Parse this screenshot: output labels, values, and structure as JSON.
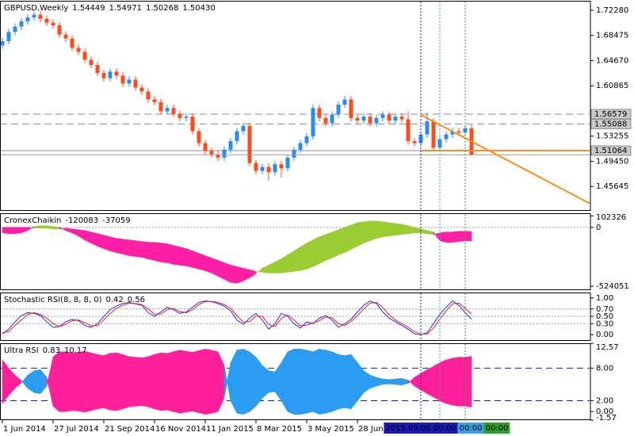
{
  "chart_data": [
    {
      "type": "candlestick",
      "title": "GBPUSD,Weekly",
      "header_values": [
        "1.54449",
        "1.54971",
        "1.50268",
        "1.50430"
      ],
      "xlim": [
        -0.375,
        92.75
      ],
      "xticks": [
        {
          "value": 0,
          "label": "1 Jun 2014"
        },
        {
          "value": 8,
          "label": "27 Jul 2014"
        },
        {
          "value": 16,
          "label": "21 Sep 2014"
        },
        {
          "value": 24,
          "label": "16 Nov 2014"
        },
        {
          "value": 32,
          "label": "11 Jan 2015"
        },
        {
          "value": 40,
          "label": "8 Mar 2015"
        },
        {
          "value": 48,
          "label": "3 May 2015"
        },
        {
          "value": 56,
          "label": "28 Jun 2015"
        }
      ],
      "ylim": [
        1.4196,
        1.7371
      ],
      "yticks": [
        {
          "value": 1.7228,
          "label": "1.72280"
        },
        1.68475,
        {
          "value": 1.6467,
          "label": "1.64670"
        },
        1.60865,
        1.53255,
        {
          "value": 1.4945,
          "label": "1.49450"
        },
        1.45645
      ],
      "up_color": "#2a8cf0",
      "down_color": "#ff4a1c",
      "open": [
        1.67,
        1.676,
        1.69,
        1.698,
        1.706,
        1.712,
        1.716,
        1.71,
        1.704,
        1.7,
        1.686,
        1.68,
        1.666,
        1.66,
        1.648,
        1.64,
        1.628,
        1.62,
        1.63,
        1.624,
        1.612,
        1.618,
        1.606,
        1.6,
        1.588,
        1.584,
        1.57,
        1.575,
        1.566,
        1.56,
        1.562,
        1.54,
        1.522,
        1.51,
        1.505,
        1.5,
        1.512,
        1.525,
        1.54,
        1.548,
        1.492,
        1.48,
        1.486,
        1.478,
        1.49,
        1.484,
        1.5,
        1.512,
        1.522,
        1.532,
        1.575,
        1.56,
        1.552,
        1.565,
        1.58,
        1.588,
        1.56,
        1.556,
        1.562,
        1.552,
        1.56,
        1.565,
        1.556,
        1.562,
        1.558,
        1.525,
        1.522,
        1.535,
        1.555,
        1.515,
        1.528,
        1.535,
        1.54,
        1.538,
        1.54449
      ],
      "high": [
        1.681,
        1.695,
        1.703,
        1.711,
        1.717,
        1.721,
        1.721,
        1.715,
        1.709,
        1.705,
        1.691,
        1.685,
        1.671,
        1.665,
        1.653,
        1.645,
        1.633,
        1.635,
        1.635,
        1.629,
        1.623,
        1.623,
        1.611,
        1.605,
        1.593,
        1.589,
        1.58,
        1.58,
        1.571,
        1.567,
        1.567,
        1.545,
        1.527,
        1.515,
        1.51,
        1.517,
        1.53,
        1.545,
        1.553,
        1.553,
        1.497,
        1.491,
        1.491,
        1.495,
        1.495,
        1.505,
        1.517,
        1.527,
        1.537,
        1.58,
        1.58,
        1.565,
        1.57,
        1.585,
        1.593,
        1.593,
        1.565,
        1.567,
        1.567,
        1.565,
        1.57,
        1.57,
        1.567,
        1.567,
        1.57,
        1.53,
        1.54,
        1.568,
        1.56,
        1.533,
        1.54,
        1.545,
        1.545,
        1.55,
        1.54971
      ],
      "low": [
        1.665,
        1.671,
        1.685,
        1.693,
        1.701,
        1.707,
        1.705,
        1.699,
        1.695,
        1.681,
        1.675,
        1.661,
        1.655,
        1.643,
        1.635,
        1.623,
        1.615,
        1.615,
        1.619,
        1.607,
        1.607,
        1.601,
        1.595,
        1.583,
        1.579,
        1.565,
        1.565,
        1.561,
        1.555,
        1.555,
        1.535,
        1.517,
        1.505,
        1.5,
        1.495,
        1.495,
        1.507,
        1.52,
        1.535,
        1.487,
        1.475,
        1.475,
        1.465,
        1.473,
        1.47,
        1.479,
        1.495,
        1.507,
        1.517,
        1.527,
        1.555,
        1.547,
        1.547,
        1.56,
        1.575,
        1.555,
        1.551,
        1.551,
        1.547,
        1.547,
        1.555,
        1.551,
        1.551,
        1.553,
        1.52,
        1.517,
        1.517,
        1.53,
        1.51,
        1.51,
        1.523,
        1.53,
        1.533,
        1.533,
        1.50268
      ],
      "close": [
        1.676,
        1.69,
        1.698,
        1.706,
        1.712,
        1.716,
        1.71,
        1.704,
        1.7,
        1.686,
        1.68,
        1.666,
        1.66,
        1.648,
        1.64,
        1.628,
        1.62,
        1.63,
        1.624,
        1.612,
        1.618,
        1.606,
        1.6,
        1.588,
        1.584,
        1.57,
        1.575,
        1.566,
        1.56,
        1.562,
        1.54,
        1.522,
        1.51,
        1.505,
        1.5,
        1.512,
        1.525,
        1.54,
        1.548,
        1.492,
        1.48,
        1.486,
        1.478,
        1.49,
        1.484,
        1.5,
        1.512,
        1.522,
        1.532,
        1.575,
        1.56,
        1.552,
        1.565,
        1.58,
        1.588,
        1.56,
        1.556,
        1.562,
        1.552,
        1.56,
        1.565,
        1.556,
        1.562,
        1.558,
        1.525,
        1.522,
        1.535,
        1.555,
        1.515,
        1.528,
        1.535,
        1.54,
        1.538,
        1.54449,
        1.5043
      ],
      "levels": [
        {
          "value": 1.56579,
          "style": "dashed"
        },
        {
          "value": 1.55088,
          "style": "dashed"
        },
        {
          "value": 1.51064,
          "style": "solid"
        }
      ],
      "support": {
        "value": 1.51064,
        "x": 66,
        "color": "#ff8c1a"
      },
      "trendline": {
        "x": [
          66,
          92.75
        ],
        "y": [
          1.5647,
          1.4303
        ],
        "color": "#ff8c1a"
      },
      "vlines": [
        {
          "x": 66,
          "color": "#1a1ab4",
          "label": "2015.09.06 00:00"
        },
        {
          "x": 69,
          "color": "#3aa0e8",
          "label": "00:00"
        },
        {
          "x": 73,
          "color": "#2ca02c",
          "label": "00:00"
        }
      ]
    },
    {
      "type": "band",
      "title": "CronexChaikin",
      "ylim": [
        -559000,
        125800
      ],
      "yticks": [
        102326,
        0,
        -524051
      ],
      "levels": [
        0
      ],
      "fill_colors": [
        "#9acd32",
        "#ff1fa6"
      ],
      "series": [
        {
          "values": [
            -49000,
            -56000,
            -56000,
            -49000,
            -28000,
            7000,
            14000,
            14000,
            7000,
            0,
            -28000,
            -49000,
            -77000,
            -112000,
            -140000,
            -168000,
            -189000,
            -210000,
            -224000,
            -238000,
            -252000,
            -259000,
            -266000,
            -280000,
            -294000,
            -308000,
            -315000,
            -329000,
            -336000,
            -343000,
            -357000,
            -371000,
            -385000,
            -406000,
            -434000,
            -462000,
            -490000,
            -497000,
            -476000,
            -448000,
            -413000,
            -364000,
            -336000,
            -308000,
            -280000,
            -245000,
            -210000,
            -175000,
            -140000,
            -112000,
            -84000,
            -63000,
            -42000,
            -21000,
            0,
            21000,
            42000,
            49000,
            56000,
            56000,
            49000,
            42000,
            35000,
            28000,
            14000,
            0,
            -14000,
            -28000,
            -42000,
            -119000,
            -133000,
            -133000,
            -126000,
            -119000,
            -120083
          ]
        },
        {
          "values": [
            0,
            0,
            0,
            0,
            0,
            -7000,
            -7000,
            -7000,
            -14000,
            -14000,
            -7000,
            -14000,
            -21000,
            -28000,
            -42000,
            -56000,
            -70000,
            -84000,
            -98000,
            -105000,
            -112000,
            -119000,
            -126000,
            -133000,
            -133000,
            -140000,
            -147000,
            -161000,
            -175000,
            -189000,
            -210000,
            -231000,
            -252000,
            -273000,
            -294000,
            -315000,
            -336000,
            -350000,
            -364000,
            -378000,
            -392000,
            -399000,
            -406000,
            -406000,
            -406000,
            -399000,
            -392000,
            -385000,
            -371000,
            -350000,
            -322000,
            -294000,
            -273000,
            -245000,
            -224000,
            -196000,
            -168000,
            -140000,
            -119000,
            -98000,
            -84000,
            -77000,
            -70000,
            -63000,
            -56000,
            -49000,
            -49000,
            -56000,
            -63000,
            -49000,
            -42000,
            -42000,
            -35000,
            -35000,
            -37059
          ]
        }
      ]
    },
    {
      "type": "line",
      "title": "Stochastic RSI(8, 8, 8, 0)",
      "ylim": [
        -0.17,
        1.15
      ],
      "yticks": [
        {
          "value": 1,
          "label": "1.00"
        },
        {
          "value": 0.7,
          "label": "0.70"
        },
        {
          "value": 0.5,
          "label": "0.50"
        },
        {
          "value": 0.3,
          "label": "0.30"
        },
        {
          "value": 0,
          "label": "0.00"
        }
      ],
      "levels": [
        0.7,
        0.5,
        0.3
      ],
      "series": [
        {
          "color": "#1e32ff",
          "values": [
            0.02,
            0.15,
            0.35,
            0.52,
            0.6,
            0.58,
            0.52,
            0.35,
            0.2,
            0.22,
            0.35,
            0.42,
            0.38,
            0.25,
            0.2,
            0.3,
            0.5,
            0.68,
            0.78,
            0.85,
            0.88,
            0.84,
            0.8,
            0.6,
            0.5,
            0.62,
            0.75,
            0.68,
            0.58,
            0.62,
            0.75,
            0.88,
            0.92,
            0.9,
            0.85,
            0.78,
            0.65,
            0.4,
            0.28,
            0.45,
            0.58,
            0.4,
            0.15,
            0.3,
            0.58,
            0.5,
            0.3,
            0.18,
            0.35,
            0.3,
            0.45,
            0.52,
            0.4,
            0.2,
            0.3,
            0.42,
            0.62,
            0.8,
            0.92,
            0.85,
            0.62,
            0.45,
            0.35,
            0.25,
            0.15,
            0.02,
            0.0,
            0.05,
            0.3,
            0.55,
            0.75,
            0.92,
            0.8,
            0.6,
            0.42
          ]
        },
        {
          "color": "#ff1a1a",
          "values": [
            0.05,
            0.08,
            0.25,
            0.4,
            0.55,
            0.6,
            0.55,
            0.45,
            0.3,
            0.22,
            0.28,
            0.38,
            0.4,
            0.32,
            0.24,
            0.25,
            0.4,
            0.58,
            0.72,
            0.8,
            0.86,
            0.85,
            0.82,
            0.7,
            0.56,
            0.56,
            0.68,
            0.72,
            0.63,
            0.6,
            0.68,
            0.82,
            0.9,
            0.91,
            0.88,
            0.82,
            0.72,
            0.52,
            0.34,
            0.36,
            0.5,
            0.5,
            0.28,
            0.22,
            0.44,
            0.54,
            0.4,
            0.24,
            0.26,
            0.32,
            0.38,
            0.48,
            0.46,
            0.3,
            0.25,
            0.36,
            0.52,
            0.7,
            0.86,
            0.88,
            0.74,
            0.54,
            0.4,
            0.3,
            0.2,
            0.08,
            0.01,
            0.02,
            0.18,
            0.42,
            0.65,
            0.84,
            0.86,
            0.72,
            0.56
          ]
        }
      ]
    },
    {
      "type": "band",
      "title": "Ultra RSI",
      "ylim": [
        -1.57,
        12.57
      ],
      "yticks": [
        12.57,
        {
          "value": 8,
          "label": "8.00"
        },
        {
          "value": 2,
          "label": "2.00"
        },
        {
          "value": 0,
          "label": "0.00"
        },
        -1.57
      ],
      "levels": [
        8,
        2
      ],
      "level_color": "#1a1ab4",
      "fill_colors": [
        "#2a9cf2",
        "#ff1f9a"
      ],
      "series": [
        {
          "values": [
            1.5,
            3.0,
            4.3,
            5.3,
            6.7,
            7.5,
            7.7,
            6.3,
            1.0,
            0.0,
            0.0,
            0.2,
            0.1,
            -0.1,
            0.2,
            0.5,
            0.7,
            0.3,
            0.2,
            0.5,
            0.9,
            1.0,
            1.1,
            0.9,
            0.5,
            0.2,
            0.3,
            0.0,
            -0.3,
            -0.1,
            0.1,
            -0.2,
            -0.5,
            -0.3,
            0.0,
            2.5,
            9.0,
            11.3,
            11.5,
            11.0,
            10.0,
            8.5,
            7.5,
            7.3,
            9.0,
            11.0,
            11.5,
            11.5,
            11.3,
            11.0,
            11.5,
            11.3,
            11.0,
            10.5,
            10.3,
            10.5,
            9.0,
            7.5,
            6.7,
            6.3,
            6.0,
            5.9,
            6.0,
            6.1,
            5.8,
            4.7,
            4.0,
            3.3,
            2.7,
            2.0,
            1.5,
            1.2,
            1.0,
            1.0,
            0.83
          ]
        },
        {
          "values": [
            9.5,
            8.0,
            6.7,
            5.7,
            4.3,
            3.5,
            3.3,
            4.7,
            10.0,
            11.0,
            11.0,
            10.8,
            10.9,
            11.1,
            10.8,
            10.5,
            10.3,
            10.7,
            10.8,
            10.5,
            10.1,
            10.0,
            9.9,
            10.1,
            10.5,
            10.8,
            10.7,
            11.0,
            11.3,
            11.1,
            10.9,
            11.2,
            11.5,
            11.3,
            11.0,
            8.5,
            2.0,
            -0.3,
            -0.5,
            0.0,
            1.0,
            2.5,
            3.5,
            3.7,
            2.0,
            0.0,
            -0.5,
            -0.5,
            -0.3,
            0.0,
            -0.5,
            -0.3,
            0.0,
            0.5,
            0.7,
            0.5,
            2.0,
            3.5,
            4.3,
            4.7,
            5.0,
            5.1,
            5.0,
            4.9,
            5.2,
            6.3,
            7.0,
            7.7,
            8.3,
            9.0,
            9.5,
            9.8,
            10.0,
            10.0,
            10.17
          ]
        }
      ]
    }
  ]
}
